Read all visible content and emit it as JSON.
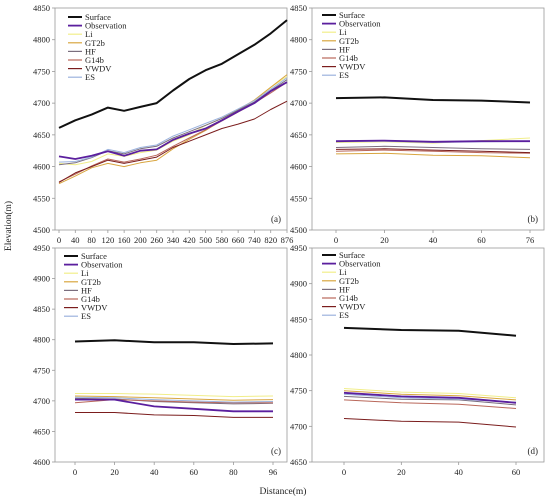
{
  "figure": {
    "ylabel": "Elevation(m)",
    "xlabel": "Distance(m)"
  },
  "series_styles": [
    {
      "name": "Surface",
      "color": "#111111",
      "width": 2.0
    },
    {
      "name": "Observation",
      "color": "#5b1f9e",
      "width": 1.8
    },
    {
      "name": "Li",
      "color": "#f1ee8a",
      "width": 1.0
    },
    {
      "name": "GT2b",
      "color": "#d9a640",
      "width": 1.0
    },
    {
      "name": "HF",
      "color": "#7a6e7e",
      "width": 1.0
    },
    {
      "name": "G14b",
      "color": "#b9675a",
      "width": 1.0
    },
    {
      "name": "VWDV",
      "color": "#7b1d1d",
      "width": 1.0
    },
    {
      "name": "ES",
      "color": "#9cb3de",
      "width": 1.0
    }
  ],
  "chart_data": [
    {
      "type": "line",
      "panel_label": "(a)",
      "xlabel": "",
      "ylabel": "Elevation(m)",
      "ylim": [
        4500,
        4850
      ],
      "yticks": [
        "4500",
        "4550",
        "4600",
        "4650",
        "4700",
        "4750",
        "4800",
        "4850"
      ],
      "x": [
        "0",
        "40",
        "80",
        "120",
        "160",
        "200",
        "260",
        "340",
        "420",
        "500",
        "580",
        "660",
        "740",
        "820",
        "876"
      ],
      "legend": "top-left",
      "series": [
        {
          "name": "Surface",
          "values": [
            4661,
            4673,
            4682,
            4693,
            4688,
            4694,
            4700,
            4720,
            4738,
            4752,
            4762,
            4777,
            4792,
            4810,
            4831
          ]
        },
        {
          "name": "Observation",
          "values": [
            4616,
            4612,
            4617,
            4624,
            4617,
            4625,
            4627,
            4642,
            4652,
            4660,
            4673,
            4687,
            4700,
            4719,
            4733
          ]
        },
        {
          "name": "Li",
          "values": [
            4605,
            4603,
            4608,
            4620,
            4616,
            4622,
            4626,
            4640,
            4650,
            4665,
            4676,
            4690,
            4705,
            4725,
            4742
          ]
        },
        {
          "name": "GT2b",
          "values": [
            4573,
            4585,
            4598,
            4605,
            4600,
            4606,
            4610,
            4628,
            4643,
            4657,
            4673,
            4689,
            4705,
            4725,
            4745
          ]
        },
        {
          "name": "HF",
          "values": [
            4603,
            4606,
            4614,
            4625,
            4620,
            4628,
            4632,
            4645,
            4655,
            4665,
            4676,
            4689,
            4702,
            4720,
            4737
          ]
        },
        {
          "name": "G14b",
          "values": [
            4576,
            4588,
            4601,
            4612,
            4607,
            4612,
            4618,
            4632,
            4645,
            4658,
            4672,
            4686,
            4700,
            4716,
            4733
          ]
        },
        {
          "name": "VWDV",
          "values": [
            4575,
            4590,
            4600,
            4610,
            4605,
            4610,
            4615,
            4630,
            4640,
            4650,
            4660,
            4667,
            4675,
            4690,
            4703
          ]
        },
        {
          "name": "ES",
          "values": [
            4607,
            4608,
            4615,
            4627,
            4622,
            4630,
            4634,
            4648,
            4658,
            4668,
            4678,
            4691,
            4704,
            4722,
            4740
          ]
        }
      ]
    },
    {
      "type": "line",
      "panel_label": "(b)",
      "xlabel": "",
      "ylabel": "",
      "ylim": [
        4500,
        4850
      ],
      "yticks": [
        "4500",
        "4550",
        "4600",
        "4650",
        "4700",
        "4750",
        "4800",
        "4850"
      ],
      "x": [
        "0",
        "20",
        "40",
        "60",
        "76"
      ],
      "legend": "top-left",
      "series": [
        {
          "name": "Surface",
          "values": [
            4708,
            4709,
            4705,
            4704,
            4701
          ]
        },
        {
          "name": "Observation",
          "values": [
            4640,
            4641,
            4639,
            4640,
            4640
          ]
        },
        {
          "name": "Li",
          "values": [
            4638,
            4639,
            4637,
            4641,
            4645
          ]
        },
        {
          "name": "GT2b",
          "values": [
            4620,
            4621,
            4618,
            4617,
            4614
          ]
        },
        {
          "name": "HF",
          "values": [
            4630,
            4632,
            4630,
            4628,
            4627
          ]
        },
        {
          "name": "G14b",
          "values": [
            4624,
            4626,
            4624,
            4622,
            4621
          ]
        },
        {
          "name": "VWDV",
          "values": [
            4627,
            4628,
            4626,
            4624,
            4622
          ]
        },
        {
          "name": "ES",
          "values": [
            4639,
            4640,
            4638,
            4639,
            4640
          ]
        }
      ]
    },
    {
      "type": "line",
      "panel_label": "(c)",
      "xlabel": "",
      "ylabel": "",
      "ylim": [
        4600,
        4950
      ],
      "yticks": [
        "4600",
        "4650",
        "4700",
        "4750",
        "4800",
        "4850",
        "4900",
        "4950"
      ],
      "x": [
        "0",
        "20",
        "40",
        "60",
        "80",
        "96"
      ],
      "legend": "top-left",
      "series": [
        {
          "name": "Surface",
          "values": [
            4797,
            4799,
            4796,
            4796,
            4793,
            4794
          ]
        },
        {
          "name": "Observation",
          "values": [
            4702,
            4702,
            4691,
            4687,
            4683,
            4683
          ]
        },
        {
          "name": "Li",
          "values": [
            4712,
            4712,
            4711,
            4709,
            4707,
            4708
          ]
        },
        {
          "name": "GT2b",
          "values": [
            4708,
            4707,
            4705,
            4703,
            4701,
            4702
          ]
        },
        {
          "name": "HF",
          "values": [
            4704,
            4703,
            4699,
            4697,
            4695,
            4696
          ]
        },
        {
          "name": "G14b",
          "values": [
            4697,
            4702,
            4700,
            4698,
            4697,
            4697
          ]
        },
        {
          "name": "VWDV",
          "values": [
            4681,
            4681,
            4677,
            4676,
            4673,
            4673
          ]
        },
        {
          "name": "ES",
          "values": [
            4706,
            4705,
            4702,
            4700,
            4698,
            4699
          ]
        }
      ]
    },
    {
      "type": "line",
      "panel_label": "(d)",
      "xlabel": "Distance(m)",
      "ylabel": "",
      "ylim": [
        4650,
        4950
      ],
      "yticks": [
        "4650",
        "4700",
        "4750",
        "4800",
        "4850",
        "4900",
        "4950"
      ],
      "x": [
        "0",
        "20",
        "40",
        "60"
      ],
      "legend": "top-left",
      "series": [
        {
          "name": "Surface",
          "values": [
            4838,
            4835,
            4834,
            4827
          ]
        },
        {
          "name": "Observation",
          "values": [
            4747,
            4742,
            4740,
            4733
          ]
        },
        {
          "name": "Li",
          "values": [
            4753,
            4748,
            4746,
            4740
          ]
        },
        {
          "name": "GT2b",
          "values": [
            4750,
            4745,
            4743,
            4737
          ]
        },
        {
          "name": "HF",
          "values": [
            4742,
            4738,
            4737,
            4730
          ]
        },
        {
          "name": "G14b",
          "values": [
            4737,
            4733,
            4731,
            4725
          ]
        },
        {
          "name": "VWDV",
          "values": [
            4711,
            4707,
            4706,
            4699
          ]
        },
        {
          "name": "ES",
          "values": [
            4745,
            4740,
            4738,
            4734
          ]
        }
      ]
    }
  ]
}
